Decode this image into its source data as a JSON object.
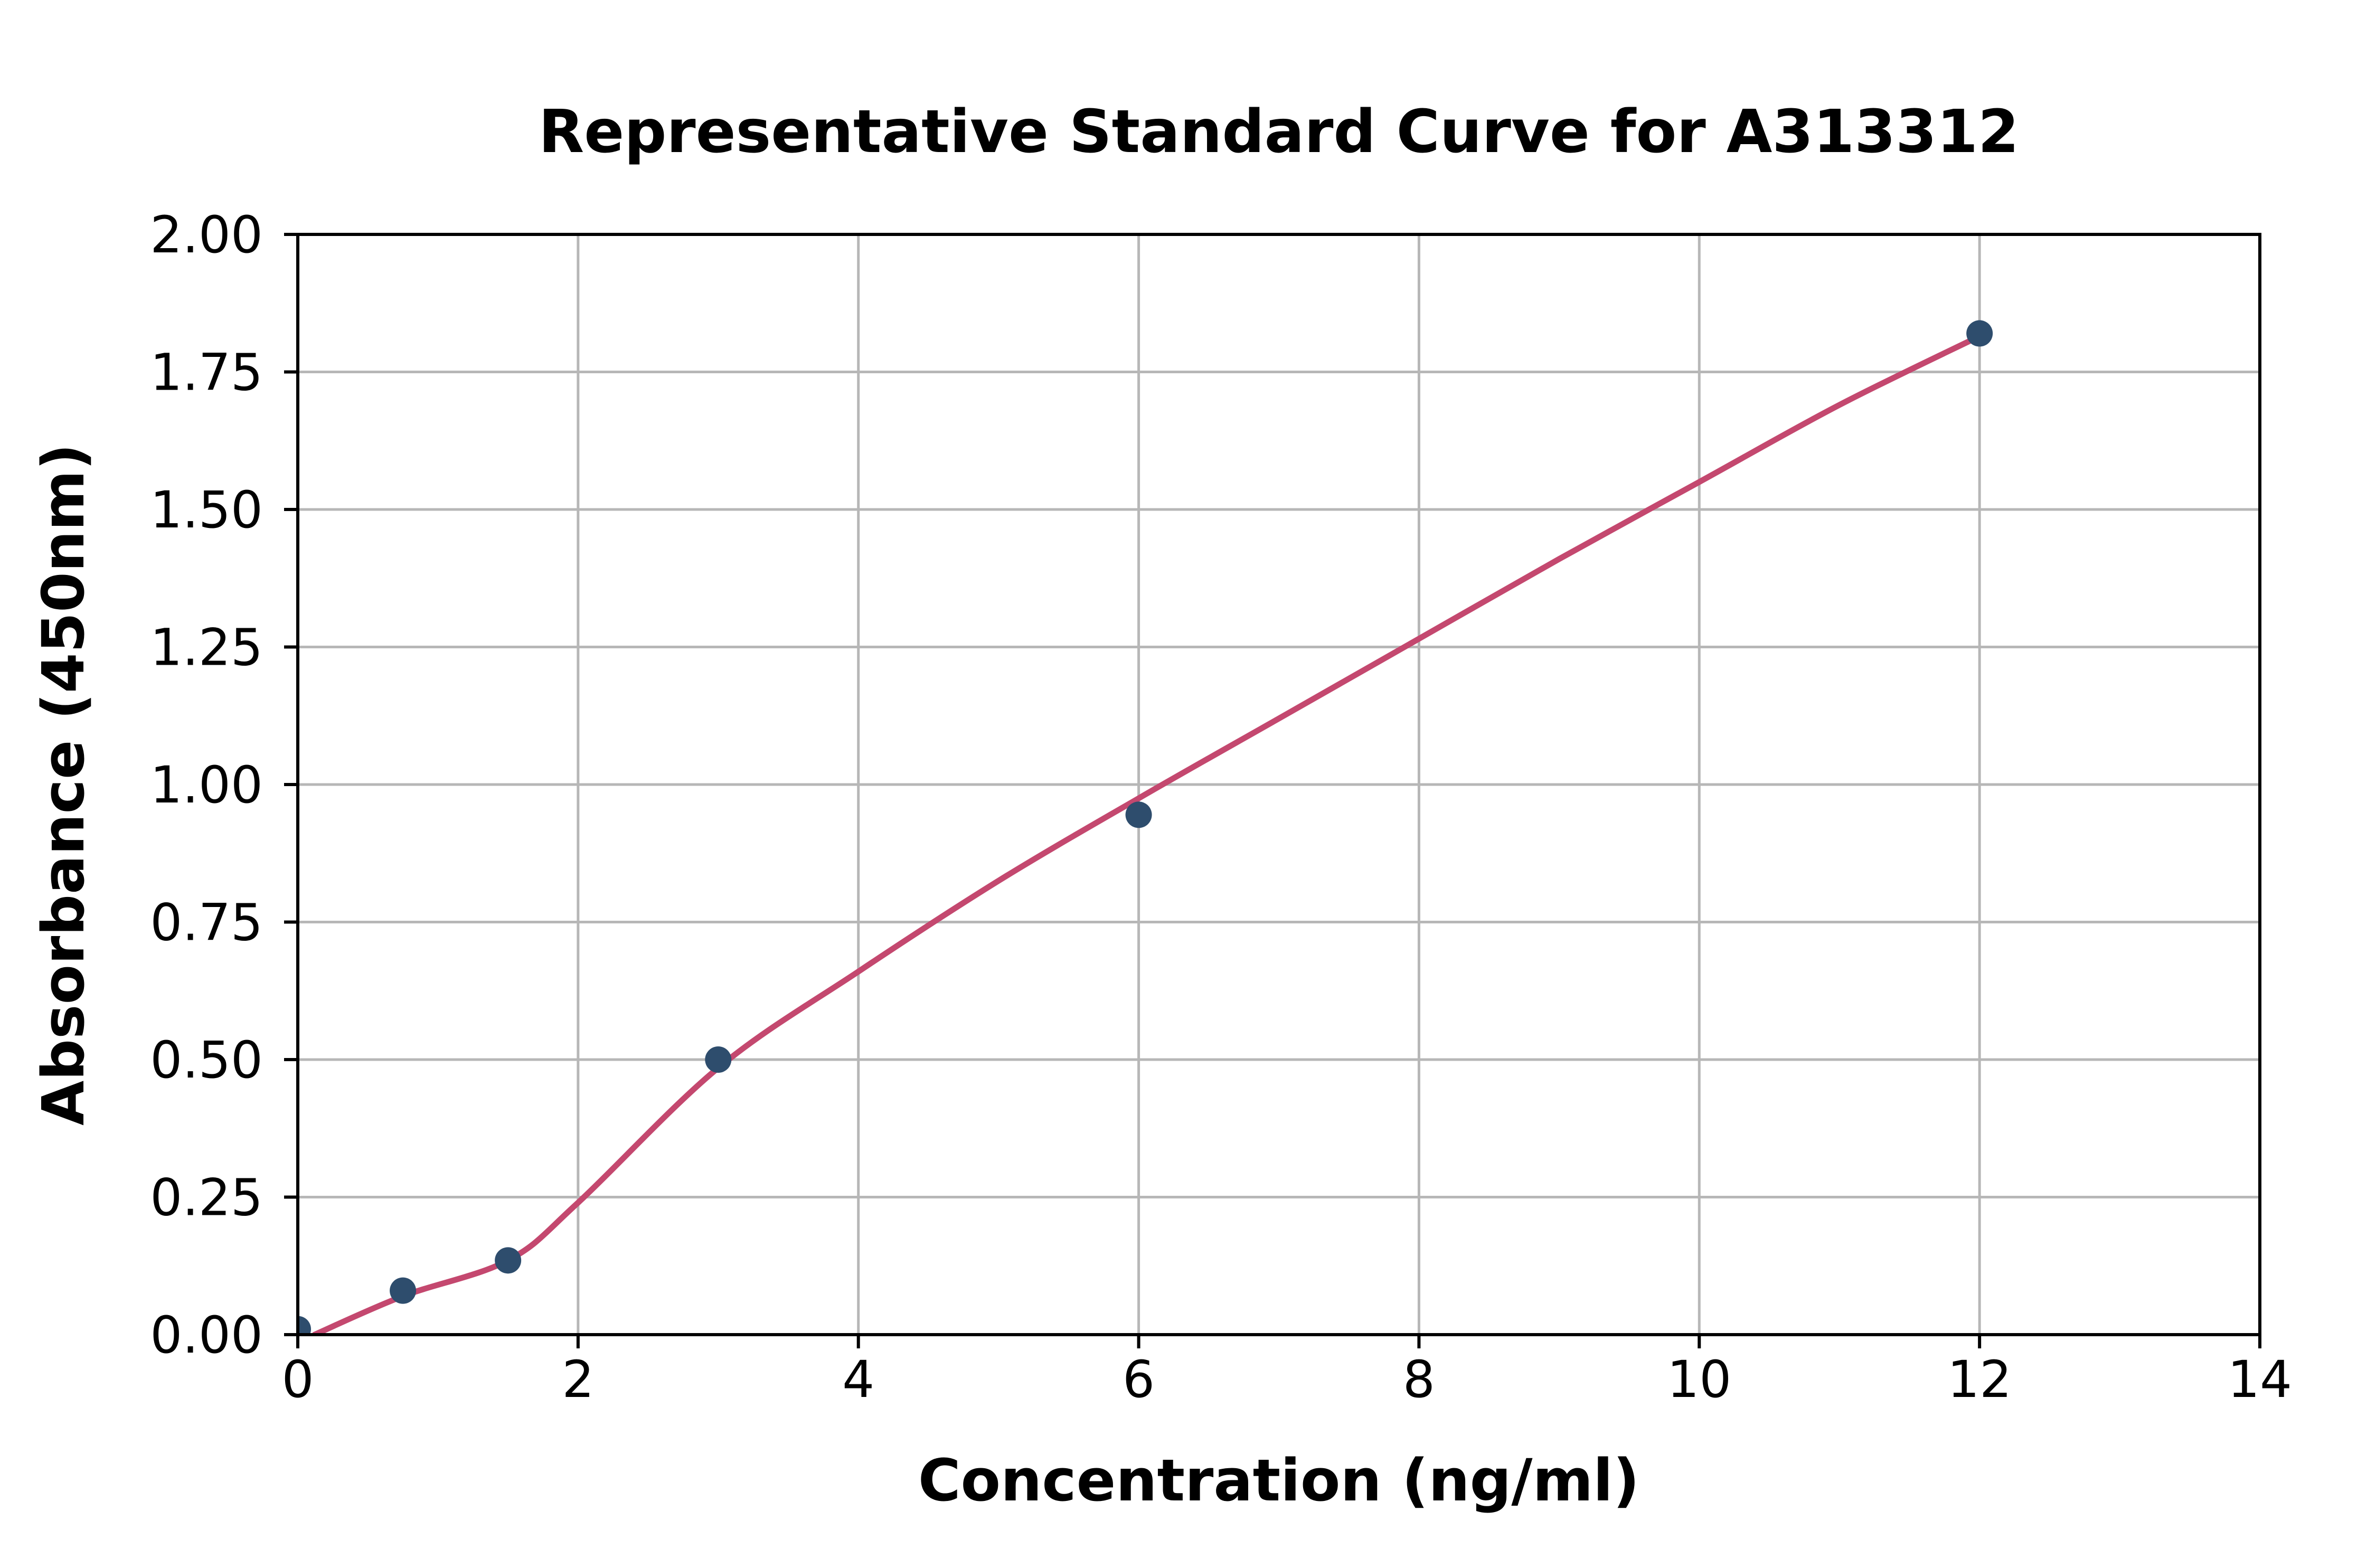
{
  "chart_data": {
    "type": "scatter",
    "title": "Representative Standard Curve for A313312",
    "xlabel": "Concentration (ng/ml)",
    "ylabel": "Absorbance (450nm)",
    "xlim": [
      0,
      14
    ],
    "ylim": [
      0.0,
      2.0
    ],
    "grid": true,
    "legend_position": "none",
    "x_ticks": {
      "values": [
        0,
        2,
        4,
        6,
        8,
        10,
        12,
        14
      ],
      "labels": [
        "0",
        "2",
        "4",
        "6",
        "8",
        "10",
        "12",
        "14"
      ]
    },
    "y_ticks": {
      "values": [
        0.0,
        0.25,
        0.5,
        0.75,
        1.0,
        1.25,
        1.5,
        1.75,
        2.0
      ],
      "labels": [
        "0.00",
        "0.25",
        "0.50",
        "0.75",
        "1.00",
        "1.25",
        "1.50",
        "1.75",
        "2.00"
      ]
    },
    "series": [
      {
        "name": "standard-points",
        "kind": "scatter",
        "points": [
          [
            0,
            0.01
          ],
          [
            0.75,
            0.08
          ],
          [
            1.5,
            0.135
          ],
          [
            3,
            0.5
          ],
          [
            6,
            0.945
          ],
          [
            12,
            1.82
          ]
        ]
      },
      {
        "name": "fit-curve",
        "kind": "line",
        "points": [
          [
            0.12,
            0.0
          ],
          [
            0.75,
            0.07
          ],
          [
            1.5,
            0.135
          ],
          [
            2.0,
            0.24
          ],
          [
            3.0,
            0.485
          ],
          [
            4.0,
            0.66
          ],
          [
            5.0,
            0.825
          ],
          [
            6.0,
            0.975
          ],
          [
            7.0,
            1.12
          ],
          [
            8.0,
            1.265
          ],
          [
            9.0,
            1.41
          ],
          [
            10.0,
            1.55
          ],
          [
            11.0,
            1.69
          ],
          [
            12.0,
            1.815
          ]
        ]
      }
    ],
    "colors": {
      "point": "#2e4d6d",
      "curve": "#c4486f",
      "grid": "#b7b7b7",
      "spine": "#000000",
      "text": "#000000",
      "background": "#ffffff"
    }
  }
}
